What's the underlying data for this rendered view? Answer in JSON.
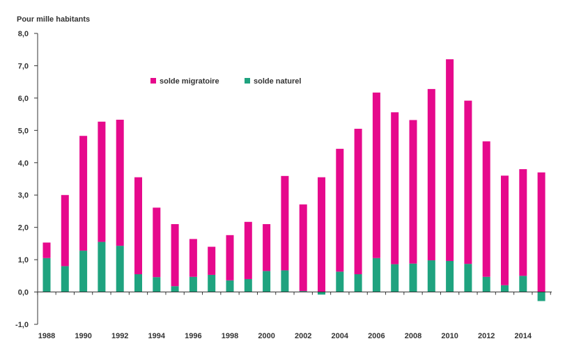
{
  "chart_data": {
    "type": "bar",
    "stacked": true,
    "ylabel": "Pour mille habitants",
    "ylim": [
      -1.0,
      8.0
    ],
    "yticks": [
      "-1,0",
      "0,0",
      "1,0",
      "2,0",
      "3,0",
      "4,0",
      "5,0",
      "6,0",
      "7,0",
      "8,0"
    ],
    "ytick_values": [
      -1,
      0,
      1,
      2,
      3,
      4,
      5,
      6,
      7,
      8
    ],
    "x": [
      1988,
      1989,
      1990,
      1991,
      1992,
      1993,
      1994,
      1995,
      1996,
      1997,
      1998,
      1999,
      2000,
      2001,
      2002,
      2003,
      2004,
      2005,
      2006,
      2007,
      2008,
      2009,
      2010,
      2011,
      2012,
      2013,
      2014,
      2015
    ],
    "xtick_labels": [
      "1988",
      "1990",
      "1992",
      "1994",
      "1996",
      "1998",
      "2000",
      "2002",
      "2004",
      "2006",
      "2008",
      "2010",
      "2012",
      "2014"
    ],
    "grid": false,
    "legend_position": "top-left",
    "series": [
      {
        "name": "solde naturel",
        "color": "#1fa37f",
        "values": [
          1.05,
          0.8,
          1.28,
          1.55,
          1.43,
          0.55,
          0.46,
          0.18,
          0.47,
          0.53,
          0.36,
          0.4,
          0.65,
          0.67,
          0.03,
          -0.08,
          0.63,
          0.55,
          1.05,
          0.86,
          0.88,
          0.98,
          0.96,
          0.87,
          0.47,
          0.21,
          0.5,
          -0.28
        ]
      },
      {
        "name": "solde migratoire",
        "color": "#e6098c",
        "values": [
          0.48,
          2.2,
          3.55,
          3.72,
          3.9,
          3.0,
          2.15,
          1.92,
          1.17,
          0.87,
          1.4,
          1.77,
          1.45,
          2.92,
          2.68,
          3.55,
          3.8,
          4.5,
          5.12,
          4.7,
          4.44,
          5.3,
          6.24,
          5.05,
          4.19,
          3.39,
          3.3,
          3.7
        ]
      }
    ]
  }
}
